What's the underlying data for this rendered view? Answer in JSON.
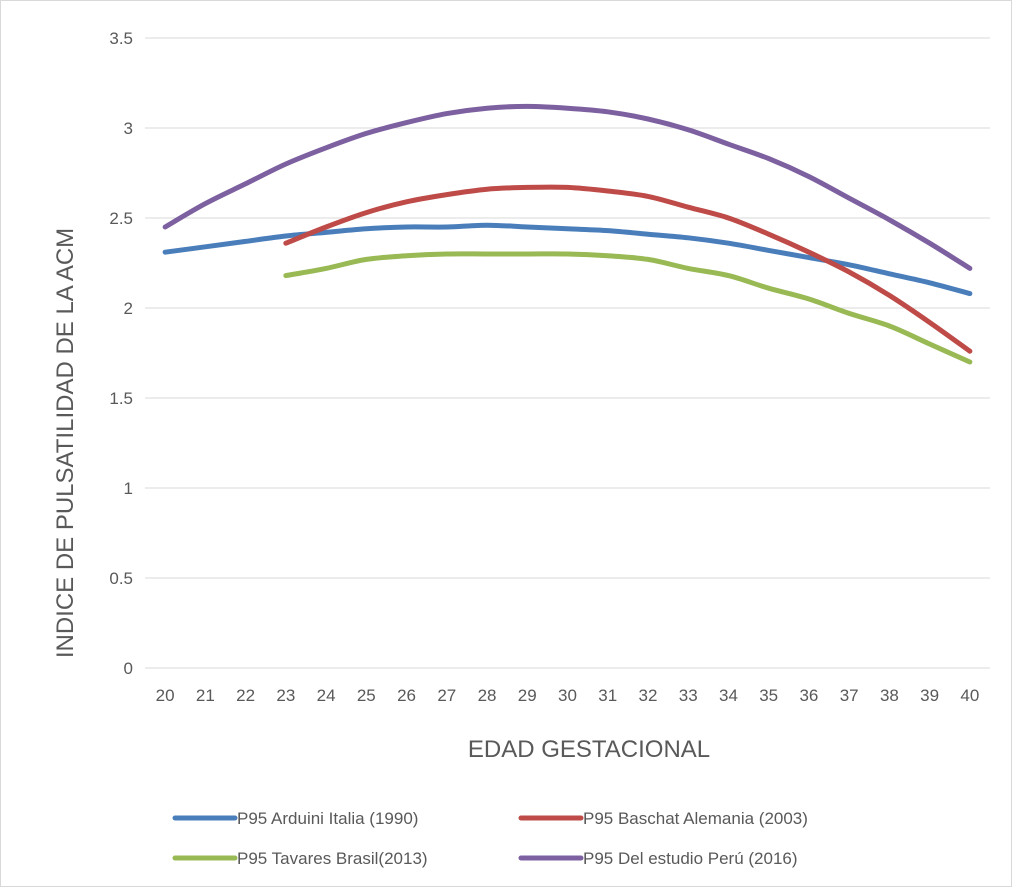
{
  "chart_data": {
    "type": "line",
    "title": "",
    "xlabel": "EDAD GESTACIONAL",
    "ylabel": "INDICE DE PULSATILIDAD DE LA ACM",
    "x": [
      "20",
      "21",
      "22",
      "23",
      "24",
      "25",
      "26",
      "27",
      "28",
      "29",
      "30",
      "31",
      "32",
      "33",
      "34",
      "35",
      "36",
      "37",
      "38",
      "39",
      "40"
    ],
    "ylim": [
      0,
      3.5
    ],
    "yticks": [
      "0",
      "0.5",
      "1",
      "1.5",
      "2",
      "2.5",
      "3",
      "3.5"
    ],
    "grid": true,
    "legend_position": "bottom",
    "series": [
      {
        "name": "P95 Arduini Italia (1990)",
        "color": "#4a7ebb",
        "values": [
          2.31,
          2.34,
          2.37,
          2.4,
          2.42,
          2.44,
          2.45,
          2.45,
          2.46,
          2.45,
          2.44,
          2.43,
          2.41,
          2.39,
          2.36,
          2.32,
          2.28,
          2.24,
          2.19,
          2.14,
          2.08
        ]
      },
      {
        "name": "P95 Baschat Alemania (2003)",
        "color": "#be4b48",
        "values": [
          null,
          null,
          null,
          2.36,
          2.45,
          2.53,
          2.59,
          2.63,
          2.66,
          2.67,
          2.67,
          2.65,
          2.62,
          2.56,
          2.5,
          2.41,
          2.31,
          2.2,
          2.07,
          1.92,
          1.76
        ]
      },
      {
        "name": "P95 Tavares Brasil(2013)",
        "color": "#98b954",
        "values": [
          null,
          null,
          null,
          2.18,
          2.22,
          2.27,
          2.29,
          2.3,
          2.3,
          2.3,
          2.3,
          2.29,
          2.27,
          2.22,
          2.18,
          2.11,
          2.05,
          1.97,
          1.9,
          1.8,
          1.7
        ]
      },
      {
        "name": "P95 Del estudio Perú (2016)",
        "color": "#7d60a0",
        "values": [
          2.45,
          2.58,
          2.69,
          2.8,
          2.89,
          2.97,
          3.03,
          3.08,
          3.11,
          3.12,
          3.11,
          3.09,
          3.05,
          2.99,
          2.91,
          2.83,
          2.73,
          2.61,
          2.49,
          2.36,
          2.22
        ]
      }
    ]
  },
  "colors": {
    "gridline": "#d9d9d9",
    "border": "#d9d9d9",
    "text": "#595959"
  }
}
